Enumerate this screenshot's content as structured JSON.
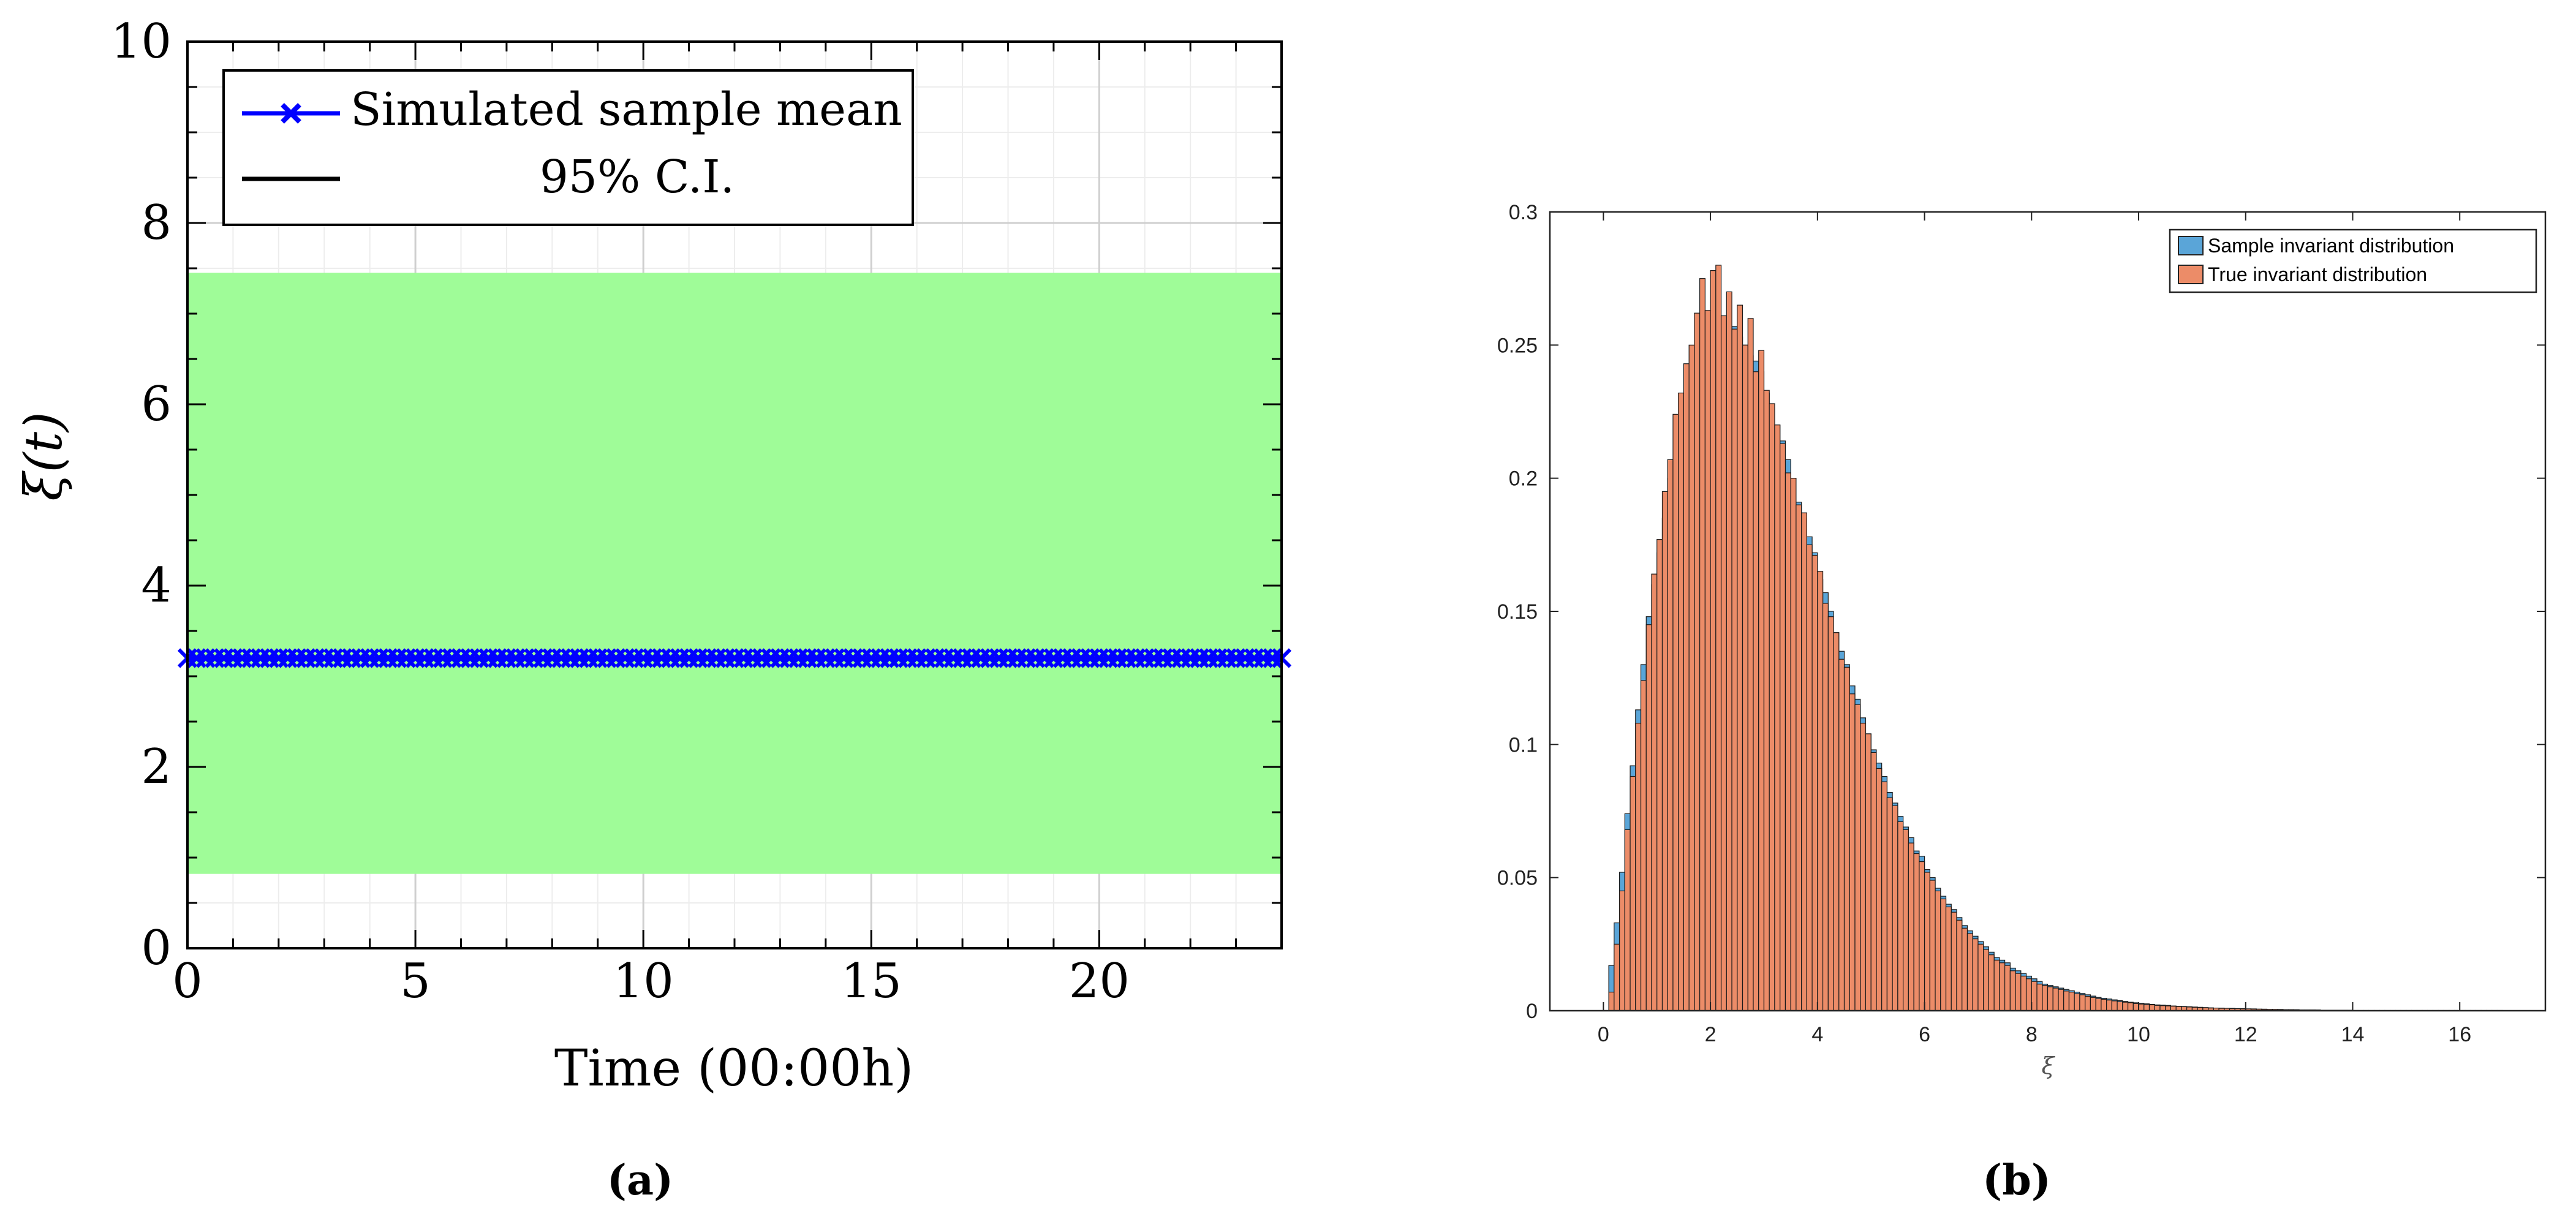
{
  "chart_data": [
    {
      "type": "line",
      "panel_label": "(a)",
      "title": "",
      "xlabel": "Time (00:00h)",
      "ylabel": "ξ(t)",
      "xlim": [
        0,
        24
      ],
      "ylim": [
        0,
        10
      ],
      "xticks": [
        0,
        5,
        10,
        15,
        20
      ],
      "yticks": [
        0,
        2,
        4,
        6,
        8,
        10
      ],
      "grid": true,
      "legend_placement": "top-left",
      "series": [
        {
          "name": "Simulated sample mean",
          "color": "#0000ff",
          "marker": "x",
          "x_range": [
            0,
            24
          ],
          "num_points": 121,
          "values_constant": 3.2
        },
        {
          "name": "95% C.I.",
          "color": "#000000",
          "fill_color": "#9ffc98",
          "band_upper": 7.45,
          "band_lower": 0.82
        }
      ]
    },
    {
      "type": "bar",
      "subtype": "histogram",
      "panel_label": "(b)",
      "title": "",
      "xlabel": "ξ",
      "ylabel": "",
      "xlim": [
        -1,
        17.6
      ],
      "ylim": [
        0,
        0.3
      ],
      "xticks": [
        0,
        2,
        4,
        6,
        8,
        10,
        12,
        14,
        16
      ],
      "yticks": [
        0,
        0.05,
        0.1,
        0.15,
        0.2,
        0.25,
        0.3
      ],
      "bin_width": 0.1,
      "legend_placement": "top-right",
      "series": [
        {
          "name": "Sample invariant distribution",
          "color": "#5aa5d8",
          "values": [
            0.0,
            0.017,
            0.033,
            0.052,
            0.074,
            0.092,
            0.113,
            0.13,
            0.148,
            0.16,
            0.172,
            0.185,
            0.2,
            0.207,
            0.218,
            0.228,
            0.233,
            0.24,
            0.247,
            0.252,
            0.255,
            0.254,
            0.258,
            0.256,
            0.257,
            0.253,
            0.25,
            0.246,
            0.244,
            0.24,
            0.232,
            0.226,
            0.22,
            0.214,
            0.207,
            0.2,
            0.191,
            0.185,
            0.178,
            0.172,
            0.162,
            0.157,
            0.15,
            0.142,
            0.135,
            0.13,
            0.122,
            0.117,
            0.11,
            0.104,
            0.098,
            0.093,
            0.088,
            0.082,
            0.078,
            0.073,
            0.069,
            0.065,
            0.06,
            0.058,
            0.053,
            0.05,
            0.046,
            0.043,
            0.04,
            0.038,
            0.035,
            0.032,
            0.03,
            0.028,
            0.026,
            0.024,
            0.022,
            0.02,
            0.019,
            0.018,
            0.016,
            0.015,
            0.014,
            0.013,
            0.012,
            0.011,
            0.01,
            0.0095,
            0.009,
            0.0085,
            0.008,
            0.0075,
            0.007,
            0.0065,
            0.006,
            0.0055,
            0.005,
            0.0047,
            0.0044,
            0.0041,
            0.0038,
            0.0035,
            0.0032,
            0.003,
            0.0028,
            0.0026,
            0.0024,
            0.0022,
            0.0021,
            0.002,
            0.0018,
            0.0017,
            0.0016,
            0.0015,
            0.0014,
            0.0013,
            0.0012,
            0.0011,
            0.001,
            0.001,
            0.0009,
            0.0009,
            0.0008,
            0.0008,
            0.0007,
            0.0007,
            0.0006,
            0.0006,
            0.0005,
            0.0005,
            0.0005,
            0.0004,
            0.0004,
            0.0004,
            0.0003,
            0.0003,
            0.0003,
            0.0003,
            0.0002,
            0.0002,
            0.0002,
            0.0002,
            0.0002,
            0.0002,
            0.0001,
            0.0001,
            0.0001,
            0.0001,
            0.0001,
            0.0001,
            0.0001,
            0.0001,
            0.0001,
            0.0001,
            0.0001,
            0.0001,
            0.0001,
            0.0001,
            0.0001,
            0.0001,
            0.0001,
            0.0001,
            0.0001,
            0.0001,
            0.0001,
            0.0001,
            0.0001,
            0.0001,
            0.0001,
            0.0001,
            0.0001,
            0.0001
          ]
        },
        {
          "name": "True invariant distribution",
          "color": "#ec8c68",
          "values": [
            0.0,
            0.007,
            0.025,
            0.045,
            0.068,
            0.088,
            0.108,
            0.124,
            0.145,
            0.164,
            0.177,
            0.195,
            0.207,
            0.224,
            0.232,
            0.243,
            0.25,
            0.262,
            0.275,
            0.263,
            0.278,
            0.28,
            0.261,
            0.27,
            0.256,
            0.265,
            0.25,
            0.26,
            0.24,
            0.248,
            0.233,
            0.228,
            0.22,
            0.213,
            0.202,
            0.2,
            0.19,
            0.187,
            0.175,
            0.171,
            0.165,
            0.153,
            0.148,
            0.142,
            0.132,
            0.129,
            0.119,
            0.115,
            0.108,
            0.104,
            0.097,
            0.091,
            0.086,
            0.08,
            0.077,
            0.071,
            0.068,
            0.063,
            0.059,
            0.056,
            0.052,
            0.049,
            0.045,
            0.042,
            0.039,
            0.037,
            0.034,
            0.031,
            0.029,
            0.027,
            0.025,
            0.023,
            0.021,
            0.019,
            0.018,
            0.017,
            0.015,
            0.014,
            0.013,
            0.012,
            0.011,
            0.01,
            0.0095,
            0.009,
            0.0085,
            0.008,
            0.0074,
            0.007,
            0.0064,
            0.006,
            0.0054,
            0.005,
            0.0046,
            0.0043,
            0.004,
            0.0037,
            0.0034,
            0.0032,
            0.003,
            0.0027,
            0.0025,
            0.0023,
            0.0022,
            0.002,
            0.0019,
            0.0018,
            0.0017,
            0.0016,
            0.0015,
            0.0014,
            0.0013,
            0.0012,
            0.0011,
            0.001,
            0.001,
            0.0009,
            0.0009,
            0.0008,
            0.0008,
            0.0007,
            0.0007,
            0.0006,
            0.0006,
            0.0005,
            0.0005,
            0.0005,
            0.0004,
            0.0004,
            0.0004,
            0.0003,
            0.0003,
            0.0003,
            0.0003,
            0.0002,
            0.0002,
            0.0002,
            0.0002,
            0.0002,
            0.0002,
            0.0001,
            0.0001,
            0.0001,
            0.0001,
            0.0001,
            0.0001,
            0.0001,
            0.0001,
            0.0001,
            0.0001,
            0.0001,
            0.0001,
            0.0001,
            0.0001,
            0.0001,
            0.0001,
            0.0001,
            0.0001,
            0.0001,
            0.0001,
            0.0001,
            0.0001,
            0.0001,
            0.0001,
            0.0001,
            0.0001,
            0.0001,
            0.0001,
            0.0001
          ]
        }
      ]
    }
  ]
}
